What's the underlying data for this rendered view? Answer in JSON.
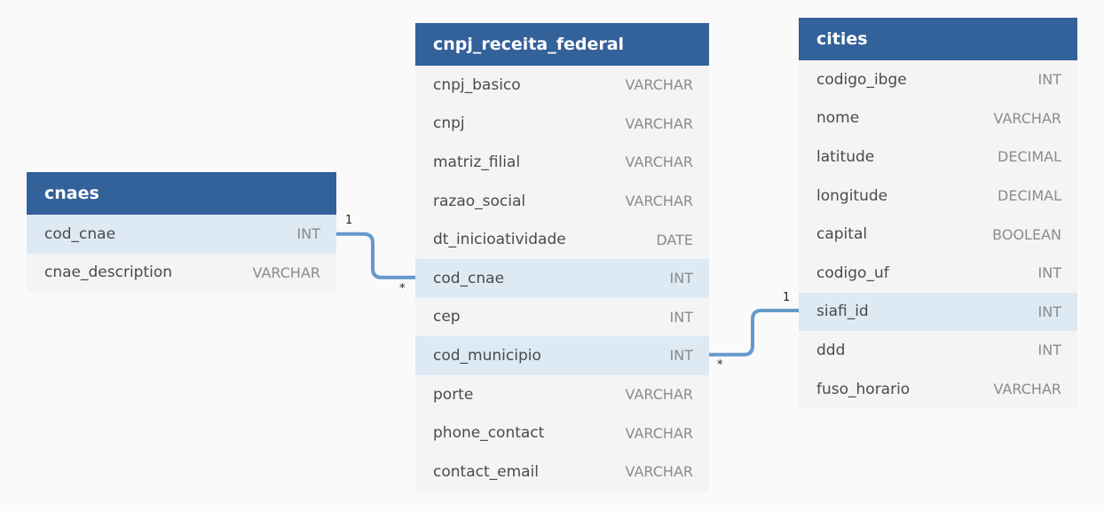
{
  "tables": {
    "cnaes": {
      "title": "cnaes",
      "columns": [
        {
          "name": "cod_cnae",
          "type": "INT",
          "highlight": true
        },
        {
          "name": "cnae_description",
          "type": "VARCHAR",
          "highlight": false
        }
      ]
    },
    "cnpj": {
      "title": "cnpj_receita_federal",
      "columns": [
        {
          "name": "cnpj_basico",
          "type": "VARCHAR",
          "highlight": false
        },
        {
          "name": "cnpj",
          "type": "VARCHAR",
          "highlight": false
        },
        {
          "name": "matriz_filial",
          "type": "VARCHAR",
          "highlight": false
        },
        {
          "name": "razao_social",
          "type": "VARCHAR",
          "highlight": false
        },
        {
          "name": "dt_inicioatividade",
          "type": "DATE",
          "highlight": false
        },
        {
          "name": "cod_cnae",
          "type": "INT",
          "highlight": true
        },
        {
          "name": "cep",
          "type": "INT",
          "highlight": false
        },
        {
          "name": "cod_municipio",
          "type": "INT",
          "highlight": true
        },
        {
          "name": "porte",
          "type": "VARCHAR",
          "highlight": false
        },
        {
          "name": "phone_contact",
          "type": "VARCHAR",
          "highlight": false
        },
        {
          "name": "contact_email",
          "type": "VARCHAR",
          "highlight": false
        }
      ]
    },
    "cities": {
      "title": "cities",
      "columns": [
        {
          "name": "codigo_ibge",
          "type": "INT",
          "highlight": false
        },
        {
          "name": "nome",
          "type": "VARCHAR",
          "highlight": false
        },
        {
          "name": "latitude",
          "type": "DECIMAL",
          "highlight": false
        },
        {
          "name": "longitude",
          "type": "DECIMAL",
          "highlight": false
        },
        {
          "name": "capital",
          "type": "BOOLEAN",
          "highlight": false
        },
        {
          "name": "codigo_uf",
          "type": "INT",
          "highlight": false
        },
        {
          "name": "siafi_id",
          "type": "INT",
          "highlight": true
        },
        {
          "name": "ddd",
          "type": "INT",
          "highlight": false
        },
        {
          "name": "fuso_horario",
          "type": "VARCHAR",
          "highlight": false
        }
      ]
    }
  },
  "relationships": [
    {
      "from": "cnaes.cod_cnae",
      "to": "cnpj_receita_federal.cod_cnae",
      "from_card": "1",
      "to_card": "*"
    },
    {
      "from": "cities.siafi_id",
      "to": "cnpj_receita_federal.cod_municipio",
      "from_card": "1",
      "to_card": "*"
    }
  ],
  "colors": {
    "header": "#336199",
    "highlight_row": "#dde9f3",
    "connector": "#6699cc"
  }
}
